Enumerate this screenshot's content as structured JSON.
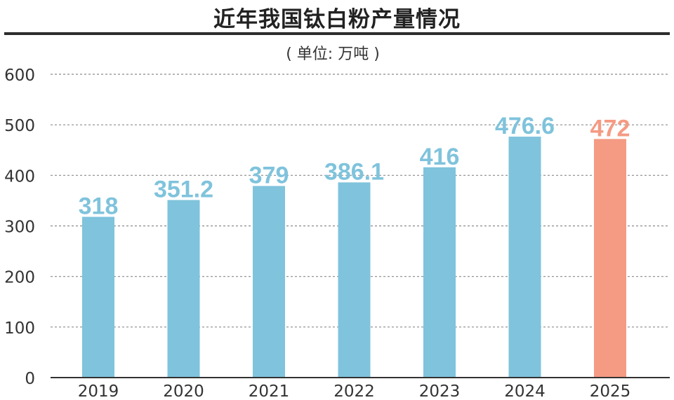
{
  "title": "近年我国钛白粉产量情况",
  "chart_data": {
    "type": "bar",
    "unit_label": "( 单位: 万吨 )",
    "categories": [
      "2019",
      "2020",
      "2021",
      "2022",
      "2023",
      "2024",
      "2025"
    ],
    "values": [
      318,
      351.2,
      379,
      386.1,
      416,
      476.6,
      472
    ],
    "value_labels": [
      "318",
      "351.2",
      "379",
      "386.1",
      "416",
      "476.6",
      "472"
    ],
    "ylim": [
      0,
      600
    ],
    "yticks": [
      0,
      100,
      200,
      300,
      400,
      500,
      600
    ],
    "grid": true,
    "colors": {
      "bar": "#7fc3dc",
      "highlight_bar": "#f59a83",
      "label": "#7fc3dc",
      "highlight_label": "#f59a83"
    },
    "highlight_index": 6
  }
}
